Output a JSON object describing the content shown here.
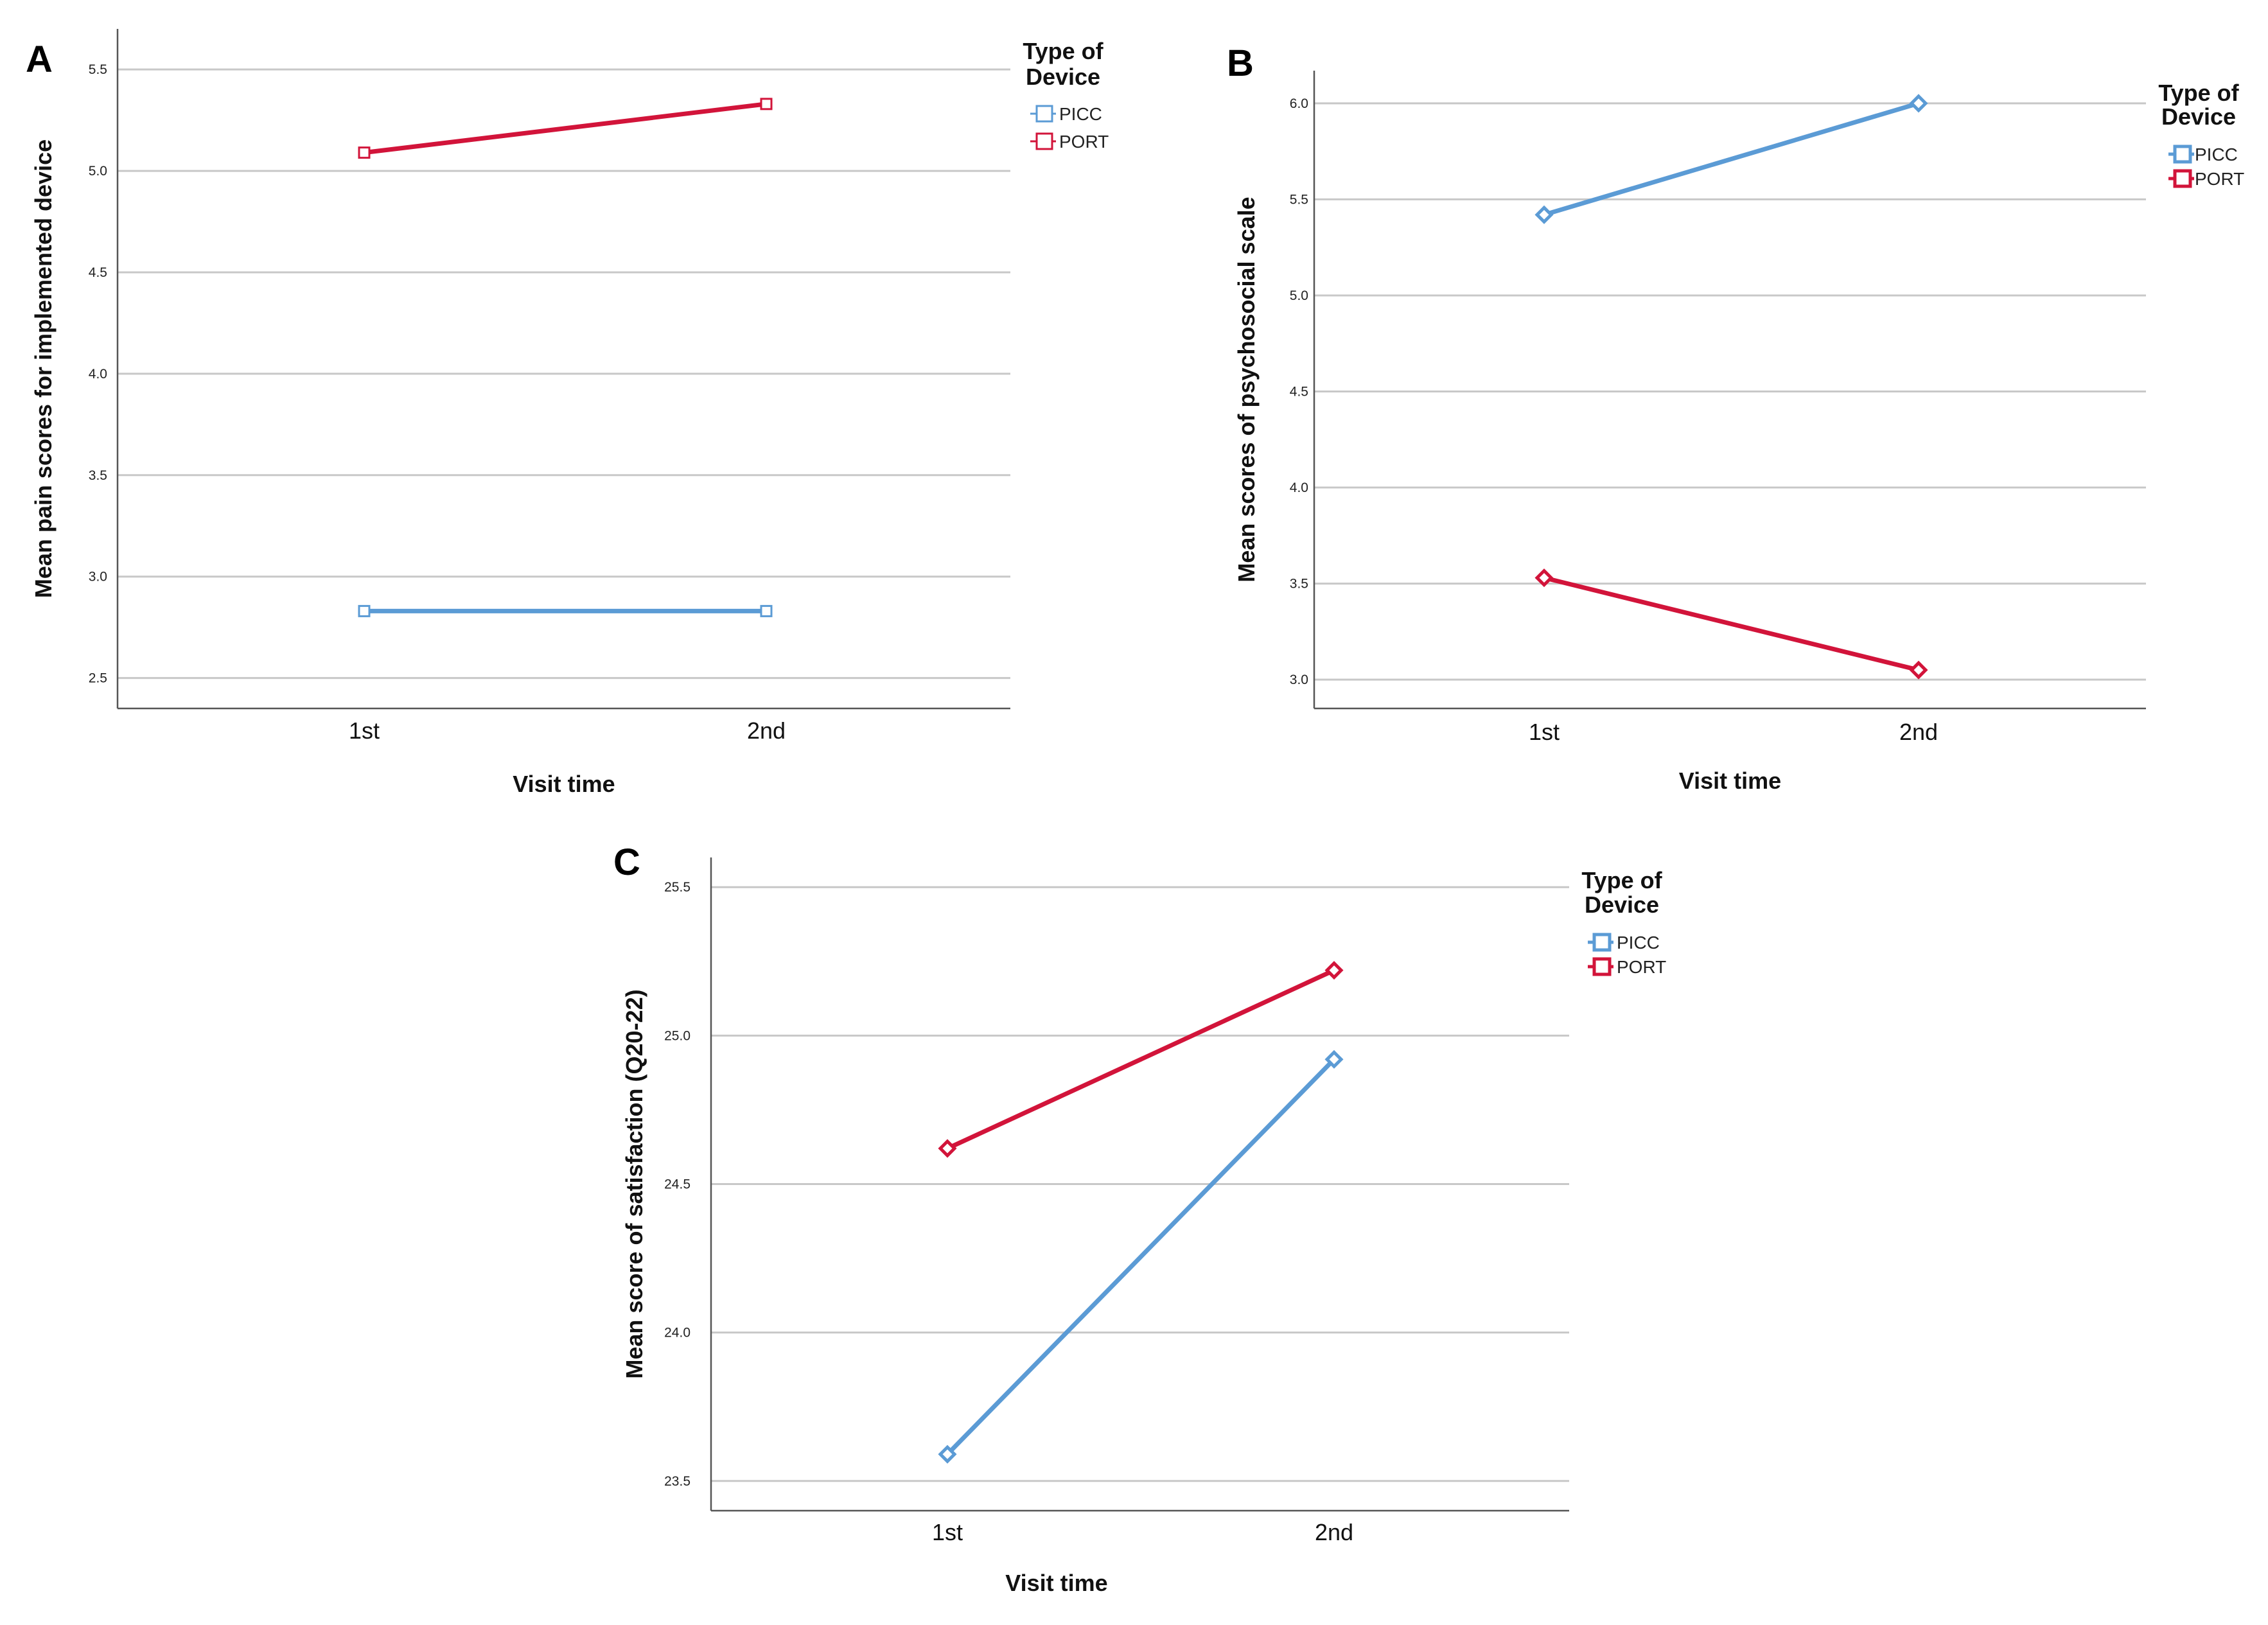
{
  "colors": {
    "picc": "#5b9bd5",
    "port": "#d2143a",
    "grid": "#c8c8c8",
    "axis": "#555555"
  },
  "chart_data": [
    {
      "panel": "A",
      "type": "line",
      "categories": [
        "1st",
        "2nd"
      ],
      "xlabel": "Visit time",
      "ylabel": "Mean pain scores for implemented device",
      "ylim": [
        2.35,
        5.7
      ],
      "yticks": [
        "2.5",
        "3.0",
        "3.5",
        "4.0",
        "4.5",
        "5.0",
        "5.5"
      ],
      "marker": "square",
      "legend": {
        "title_line1": "Type of",
        "title_line2": "Device",
        "placement": "top-right"
      },
      "series": [
        {
          "name": "PICC",
          "values": [
            2.83,
            2.83
          ]
        },
        {
          "name": "PORT",
          "values": [
            5.09,
            5.33
          ]
        }
      ]
    },
    {
      "panel": "B",
      "type": "line",
      "categories": [
        "1st",
        "2nd"
      ],
      "xlabel": "Visit time",
      "ylabel": "Mean scores of psychosocial scale",
      "ylim": [
        2.85,
        6.17
      ],
      "yticks": [
        "3.0",
        "3.5",
        "4.0",
        "4.5",
        "5.0",
        "5.5",
        "6.0"
      ],
      "marker": "diamond",
      "legend": {
        "title_line1": "Type of",
        "title_line2": "Device",
        "placement": "top-right"
      },
      "series": [
        {
          "name": "PICC",
          "values": [
            5.42,
            6.0
          ]
        },
        {
          "name": "PORT",
          "values": [
            3.53,
            3.05
          ]
        }
      ]
    },
    {
      "panel": "C",
      "type": "line",
      "categories": [
        "1st",
        "2nd"
      ],
      "xlabel": "Visit time",
      "ylabel": "Mean score of satisfaction (Q20-22)",
      "ylim": [
        23.4,
        25.6
      ],
      "yticks": [
        "23.5",
        "24.0",
        "24.5",
        "25.0",
        "25.5"
      ],
      "marker": "diamond",
      "legend": {
        "title_line1": "Type of",
        "title_line2": "Device",
        "placement": "top-right"
      },
      "series": [
        {
          "name": "PICC",
          "values": [
            23.59,
            24.92
          ]
        },
        {
          "name": "PORT",
          "values": [
            24.62,
            25.22
          ]
        }
      ]
    }
  ]
}
